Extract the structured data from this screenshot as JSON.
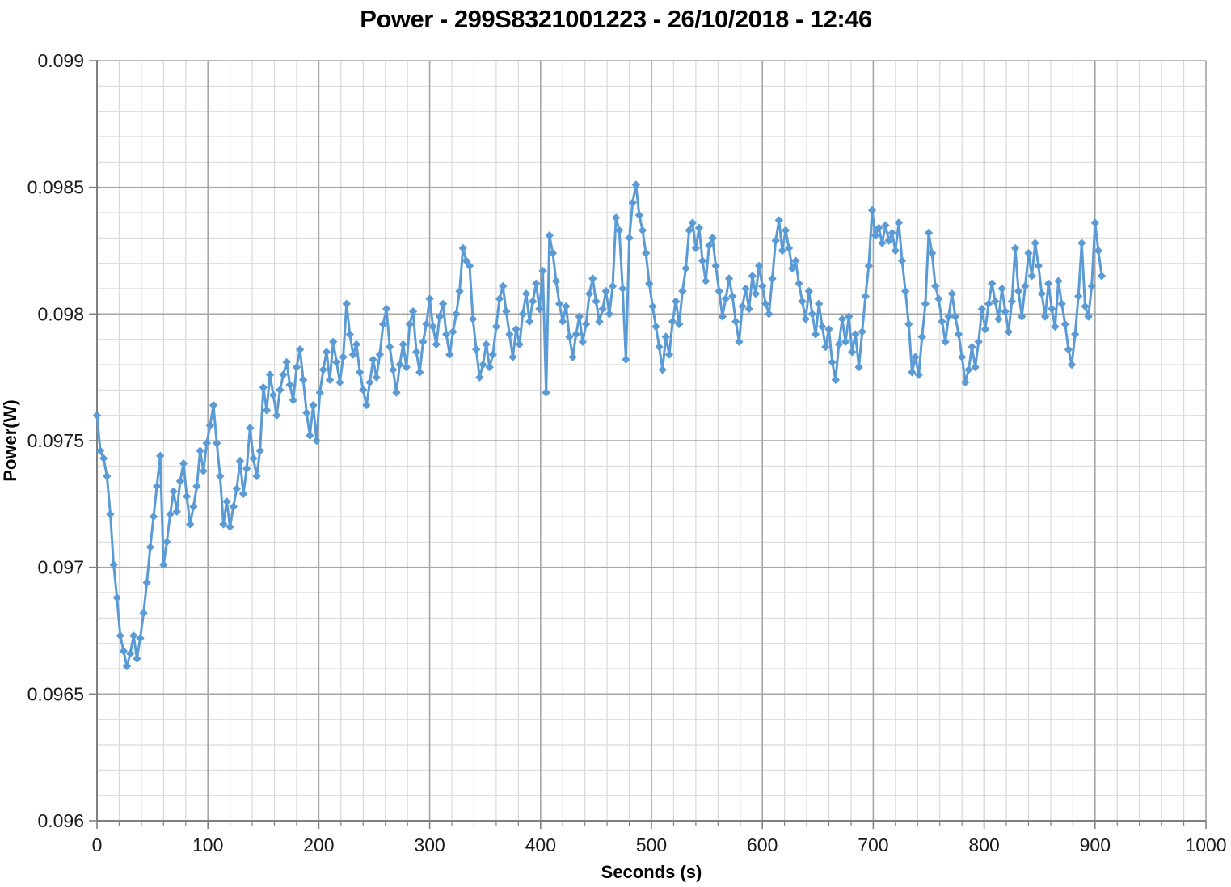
{
  "title": "Power - 299S8321001223 - 26/10/2018 - 12:46",
  "colors": {
    "series": "#5B9BD5",
    "grid_minor": "#D9D9D9",
    "grid_major": "#A6A6A6",
    "axis": "#808080",
    "tick_text": "#1a1a1a",
    "title_text": "#000000"
  },
  "chart_data": {
    "type": "line",
    "title": "Power - 299S8321001223 - 26/10/2018 - 12:46",
    "xlabel": "Seconds (s)",
    "ylabel": "Power(W)",
    "xlim": [
      0,
      1000
    ],
    "ylim": [
      0.096,
      0.099
    ],
    "x_major": 100,
    "x_minor": 20,
    "y_major": 0.0005,
    "y_minor": 0.0001,
    "grid": true,
    "legend": false,
    "x_ticks": [
      0,
      100,
      200,
      300,
      400,
      500,
      600,
      700,
      800,
      900,
      1000
    ],
    "y_ticks": [
      0.096,
      0.0965,
      0.097,
      0.0975,
      0.098,
      0.0985,
      0.099
    ],
    "y_tick_labels": [
      "0.096",
      "0.0965",
      "0.097",
      "0.0975",
      "0.098",
      "0.0985",
      "0.099"
    ],
    "series": [
      {
        "name": "Power",
        "color": "#5B9BD5",
        "marker": "diamond",
        "x_start": 0,
        "x_step": 3,
        "y": [
          0.0976,
          0.09746,
          0.09743,
          0.09736,
          0.09721,
          0.09701,
          0.09688,
          0.09673,
          0.09667,
          0.09661,
          0.09666,
          0.09673,
          0.09664,
          0.09672,
          0.09682,
          0.09694,
          0.09708,
          0.0972,
          0.09732,
          0.09744,
          0.09701,
          0.0971,
          0.09721,
          0.0973,
          0.09722,
          0.09734,
          0.09741,
          0.09728,
          0.09717,
          0.09724,
          0.09732,
          0.09746,
          0.09738,
          0.09749,
          0.09756,
          0.09764,
          0.09749,
          0.09736,
          0.09717,
          0.09726,
          0.09716,
          0.09724,
          0.09731,
          0.09742,
          0.09729,
          0.09739,
          0.09755,
          0.09743,
          0.09736,
          0.09746,
          0.09771,
          0.09762,
          0.09776,
          0.09768,
          0.0976,
          0.0977,
          0.09776,
          0.09781,
          0.09772,
          0.09766,
          0.09779,
          0.09786,
          0.09774,
          0.09761,
          0.09752,
          0.09764,
          0.0975,
          0.09769,
          0.09778,
          0.09785,
          0.09774,
          0.09789,
          0.09781,
          0.09773,
          0.09783,
          0.09804,
          0.09792,
          0.09784,
          0.09788,
          0.09777,
          0.0977,
          0.09764,
          0.09773,
          0.09782,
          0.09775,
          0.09784,
          0.09796,
          0.09802,
          0.09787,
          0.09778,
          0.09769,
          0.0978,
          0.09788,
          0.09779,
          0.09796,
          0.09801,
          0.09785,
          0.09777,
          0.09789,
          0.09796,
          0.09806,
          0.09795,
          0.09788,
          0.09799,
          0.09804,
          0.09792,
          0.09784,
          0.09793,
          0.098,
          0.09809,
          0.09826,
          0.09821,
          0.09819,
          0.09798,
          0.09786,
          0.09775,
          0.0978,
          0.09788,
          0.09779,
          0.09784,
          0.09795,
          0.09806,
          0.09811,
          0.09801,
          0.09792,
          0.09783,
          0.09794,
          0.09788,
          0.098,
          0.09808,
          0.09797,
          0.09805,
          0.09812,
          0.09802,
          0.09817,
          0.09769,
          0.09831,
          0.09824,
          0.09813,
          0.09804,
          0.09797,
          0.09803,
          0.09791,
          0.09783,
          0.09792,
          0.09799,
          0.09789,
          0.09796,
          0.09808,
          0.09814,
          0.09805,
          0.09797,
          0.09802,
          0.09809,
          0.098,
          0.09811,
          0.09838,
          0.09833,
          0.0981,
          0.09782,
          0.0983,
          0.09844,
          0.09851,
          0.09839,
          0.09833,
          0.09824,
          0.09812,
          0.09803,
          0.09795,
          0.09787,
          0.09778,
          0.09791,
          0.09784,
          0.09797,
          0.09805,
          0.09796,
          0.09809,
          0.09818,
          0.09833,
          0.09836,
          0.09826,
          0.09834,
          0.09821,
          0.09813,
          0.09827,
          0.0983,
          0.09819,
          0.09809,
          0.09799,
          0.09806,
          0.09814,
          0.09807,
          0.09797,
          0.09789,
          0.09803,
          0.0981,
          0.09802,
          0.09815,
          0.09808,
          0.09819,
          0.09811,
          0.09804,
          0.098,
          0.09814,
          0.09829,
          0.09837,
          0.09825,
          0.09833,
          0.09826,
          0.09818,
          0.09821,
          0.09812,
          0.09805,
          0.09798,
          0.09809,
          0.098,
          0.09792,
          0.09804,
          0.09795,
          0.09787,
          0.09794,
          0.09781,
          0.09774,
          0.09788,
          0.09798,
          0.09789,
          0.09799,
          0.09785,
          0.09792,
          0.09779,
          0.09793,
          0.09807,
          0.09819,
          0.09841,
          0.09831,
          0.09834,
          0.09828,
          0.09835,
          0.09829,
          0.09832,
          0.09825,
          0.09836,
          0.09821,
          0.09809,
          0.09796,
          0.09777,
          0.09783,
          0.09776,
          0.09791,
          0.09804,
          0.09832,
          0.09824,
          0.09811,
          0.09806,
          0.09797,
          0.09789,
          0.09799,
          0.09808,
          0.09799,
          0.09792,
          0.09783,
          0.09773,
          0.09778,
          0.09787,
          0.09779,
          0.09789,
          0.09802,
          0.09794,
          0.09804,
          0.09812,
          0.09805,
          0.09798,
          0.0981,
          0.09801,
          0.09793,
          0.09805,
          0.09826,
          0.09809,
          0.09799,
          0.09811,
          0.09824,
          0.09815,
          0.09828,
          0.09819,
          0.09808,
          0.09799,
          0.09812,
          0.09802,
          0.09795,
          0.09813,
          0.09804,
          0.09796,
          0.09786,
          0.0978,
          0.09792,
          0.09807,
          0.09828,
          0.09803,
          0.09799,
          0.09811,
          0.09836,
          0.09825,
          0.09815
        ]
      }
    ]
  }
}
